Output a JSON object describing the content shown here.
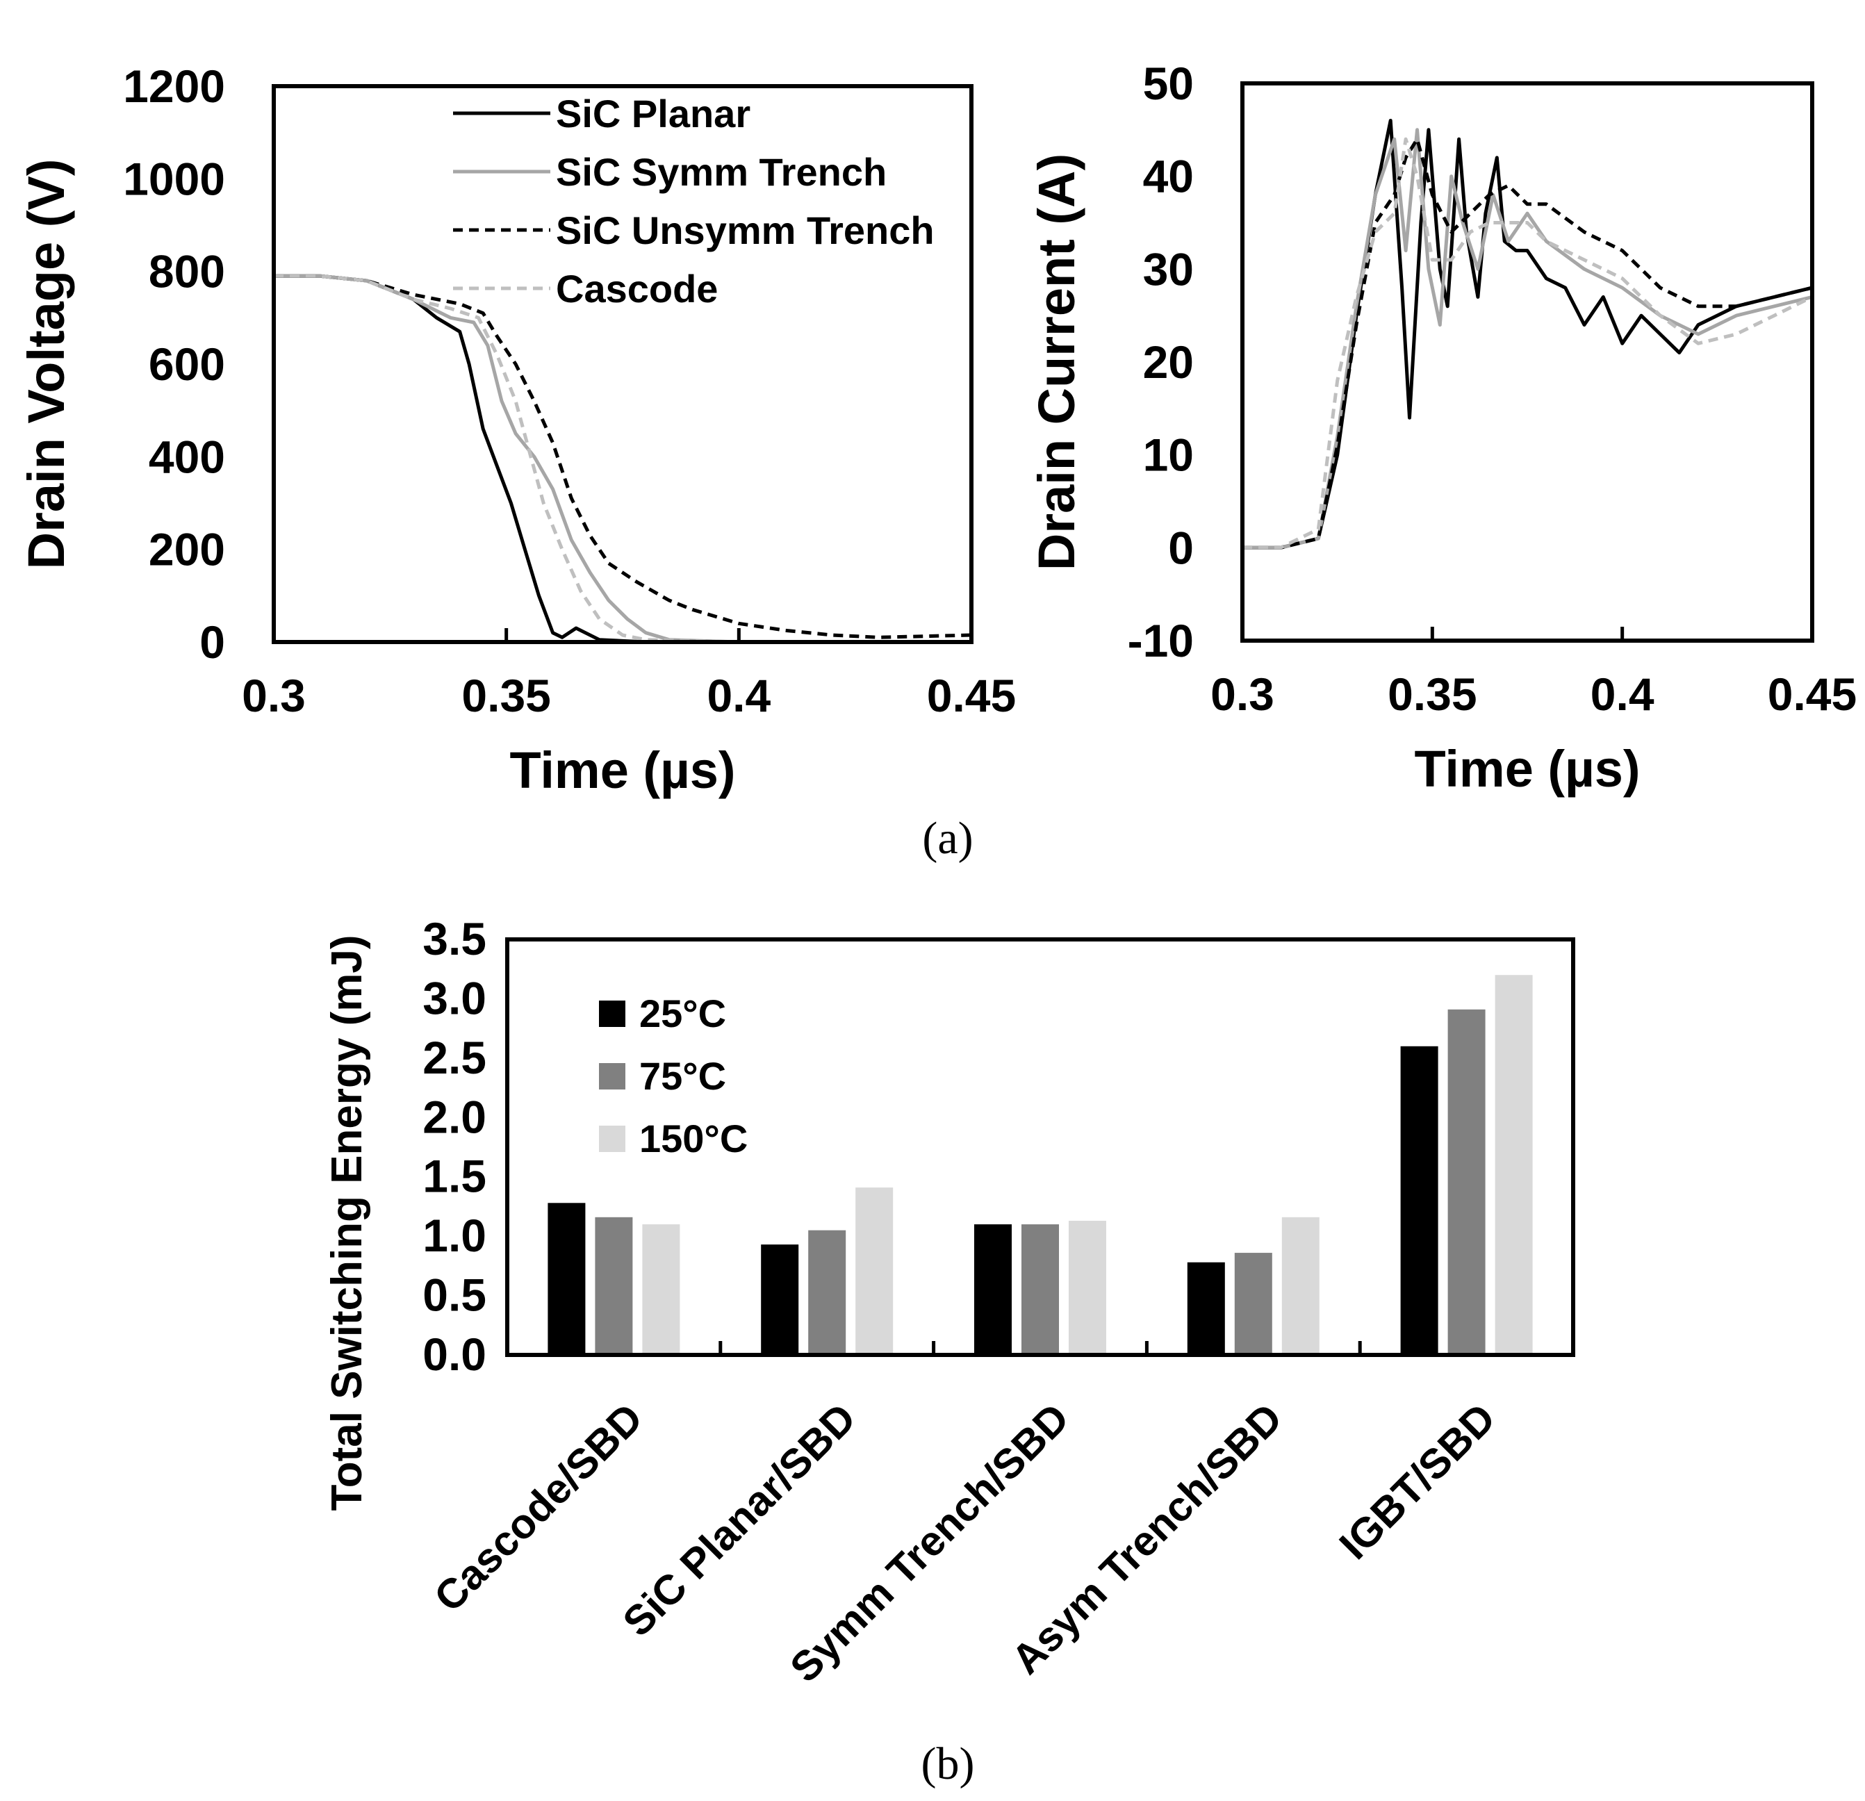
{
  "chart_data": [
    {
      "id": "voltage",
      "type": "line",
      "xlabel": "Time (µs)",
      "ylabel": "Drain Voltage (V)",
      "xlim": [
        0.3,
        0.45
      ],
      "ylim": [
        0,
        1200
      ],
      "xticks": [
        "0.3",
        "0.35",
        "0.4",
        "0.45"
      ],
      "yticks": [
        "0",
        "200",
        "400",
        "600",
        "800",
        "1000",
        "1200"
      ],
      "legend_position": "top-center",
      "series": [
        {
          "name": "SiC Planar",
          "color": "#000000",
          "dash": "solid",
          "x": [
            0.3,
            0.31,
            0.32,
            0.33,
            0.335,
            0.34,
            0.342,
            0.345,
            0.348,
            0.351,
            0.354,
            0.357,
            0.36,
            0.362,
            0.365,
            0.37,
            0.38,
            0.4,
            0.45
          ],
          "y": [
            790,
            790,
            780,
            740,
            700,
            670,
            600,
            460,
            380,
            300,
            200,
            100,
            20,
            10,
            30,
            5,
            0,
            0,
            0
          ]
        },
        {
          "name": "SiC Symm Trench",
          "color": "#a6a6a6",
          "dash": "solid",
          "x": [
            0.3,
            0.31,
            0.32,
            0.33,
            0.338,
            0.343,
            0.346,
            0.349,
            0.352,
            0.356,
            0.36,
            0.364,
            0.368,
            0.372,
            0.376,
            0.38,
            0.385,
            0.4,
            0.45
          ],
          "y": [
            790,
            790,
            780,
            740,
            700,
            690,
            640,
            520,
            450,
            400,
            330,
            220,
            150,
            90,
            50,
            20,
            5,
            0,
            0
          ]
        },
        {
          "name": "SiC Unsymm Trench",
          "color": "#000000",
          "dash": "dashed",
          "x": [
            0.3,
            0.31,
            0.32,
            0.33,
            0.34,
            0.345,
            0.348,
            0.352,
            0.356,
            0.36,
            0.364,
            0.368,
            0.372,
            0.378,
            0.385,
            0.39,
            0.4,
            0.41,
            0.42,
            0.43,
            0.45
          ],
          "y": [
            790,
            790,
            780,
            750,
            730,
            710,
            660,
            600,
            520,
            430,
            310,
            230,
            170,
            130,
            90,
            70,
            40,
            25,
            15,
            10,
            15
          ]
        },
        {
          "name": "Cascode",
          "color": "#bfbfbf",
          "dash": "dashed",
          "x": [
            0.3,
            0.31,
            0.32,
            0.33,
            0.338,
            0.344,
            0.348,
            0.352,
            0.355,
            0.358,
            0.362,
            0.366,
            0.37,
            0.375,
            0.38,
            0.4,
            0.45
          ],
          "y": [
            790,
            790,
            780,
            740,
            720,
            700,
            620,
            520,
            410,
            300,
            200,
            110,
            50,
            15,
            5,
            0,
            0
          ]
        }
      ]
    },
    {
      "id": "current",
      "type": "line",
      "xlabel": "Time (µs)",
      "ylabel": "Drain Current (A)",
      "xlim": [
        0.3,
        0.45
      ],
      "ylim": [
        -10,
        50
      ],
      "xticks": [
        "0.3",
        "0.35",
        "0.4",
        "0.45"
      ],
      "yticks": [
        "-10",
        "0",
        "10",
        "20",
        "30",
        "40",
        "50"
      ],
      "series": [
        {
          "name": "SiC Planar",
          "color": "#000000",
          "dash": "solid",
          "x": [
            0.3,
            0.31,
            0.32,
            0.325,
            0.33,
            0.335,
            0.339,
            0.342,
            0.344,
            0.347,
            0.349,
            0.352,
            0.354,
            0.357,
            0.359,
            0.362,
            0.364,
            0.367,
            0.369,
            0.372,
            0.375,
            0.38,
            0.385,
            0.39,
            0.395,
            0.4,
            0.405,
            0.41,
            0.415,
            0.42,
            0.43,
            0.44,
            0.45
          ],
          "y": [
            0,
            0,
            1,
            10,
            25,
            38,
            46,
            28,
            14,
            35,
            45,
            30,
            26,
            44,
            34,
            27,
            36,
            42,
            33,
            32,
            32,
            29,
            28,
            24,
            27,
            22,
            25,
            23,
            21,
            24,
            26,
            27,
            28
          ]
        },
        {
          "name": "SiC Symm Trench",
          "color": "#a6a6a6",
          "dash": "solid",
          "x": [
            0.3,
            0.31,
            0.32,
            0.325,
            0.33,
            0.335,
            0.34,
            0.343,
            0.346,
            0.349,
            0.352,
            0.355,
            0.358,
            0.362,
            0.366,
            0.37,
            0.375,
            0.38,
            0.39,
            0.4,
            0.41,
            0.42,
            0.43,
            0.44,
            0.45
          ],
          "y": [
            0,
            0,
            1,
            12,
            26,
            38,
            44,
            32,
            45,
            30,
            24,
            40,
            35,
            30,
            38,
            33,
            36,
            33,
            30,
            28,
            25,
            23,
            25,
            26,
            27
          ]
        },
        {
          "name": "SiC Unsymm Trench",
          "color": "#000000",
          "dash": "dashed",
          "x": [
            0.3,
            0.31,
            0.32,
            0.325,
            0.33,
            0.335,
            0.34,
            0.343,
            0.346,
            0.35,
            0.355,
            0.36,
            0.365,
            0.37,
            0.375,
            0.38,
            0.39,
            0.4,
            0.41,
            0.42,
            0.43,
            0.44,
            0.45
          ],
          "y": [
            0,
            0,
            1,
            11,
            24,
            35,
            38,
            42,
            44,
            38,
            34,
            36,
            38,
            39,
            37,
            37,
            34,
            32,
            28,
            26,
            26,
            27,
            28
          ]
        },
        {
          "name": "Cascode",
          "color": "#bfbfbf",
          "dash": "dashed",
          "x": [
            0.3,
            0.31,
            0.32,
            0.325,
            0.33,
            0.335,
            0.34,
            0.343,
            0.346,
            0.35,
            0.355,
            0.36,
            0.365,
            0.37,
            0.375,
            0.38,
            0.39,
            0.4,
            0.41,
            0.42,
            0.43,
            0.44,
            0.45
          ],
          "y": [
            0,
            0,
            2,
            18,
            27,
            34,
            36,
            44,
            40,
            31,
            31,
            34,
            35,
            35,
            35,
            33,
            31,
            29,
            25,
            22,
            23,
            25,
            27
          ]
        }
      ]
    },
    {
      "id": "energy",
      "type": "bar",
      "ylabel": "Total Switching Energy (mJ)",
      "ylim": [
        0,
        3.5
      ],
      "yticks": [
        "0.0",
        "0.5",
        "1.0",
        "1.5",
        "2.0",
        "2.5",
        "3.0",
        "3.5"
      ],
      "categories": [
        "Cascode/SBD",
        "SiC Planar/SBD",
        "Symm Trench/SBD",
        "Asym Trench/SBD",
        "IGBT/SBD"
      ],
      "legend_position": "top-left",
      "series": [
        {
          "name": "25°C",
          "color": "#000000",
          "values": [
            1.28,
            0.93,
            1.1,
            0.78,
            2.6
          ]
        },
        {
          "name": "75°C",
          "color": "#808080",
          "values": [
            1.16,
            1.05,
            1.1,
            0.86,
            2.91
          ]
        },
        {
          "name": "150°C",
          "color": "#d9d9d9",
          "values": [
            1.1,
            1.41,
            1.13,
            1.16,
            3.2
          ]
        }
      ]
    }
  ],
  "panels": {
    "a": "(a)",
    "b": "(b)"
  }
}
